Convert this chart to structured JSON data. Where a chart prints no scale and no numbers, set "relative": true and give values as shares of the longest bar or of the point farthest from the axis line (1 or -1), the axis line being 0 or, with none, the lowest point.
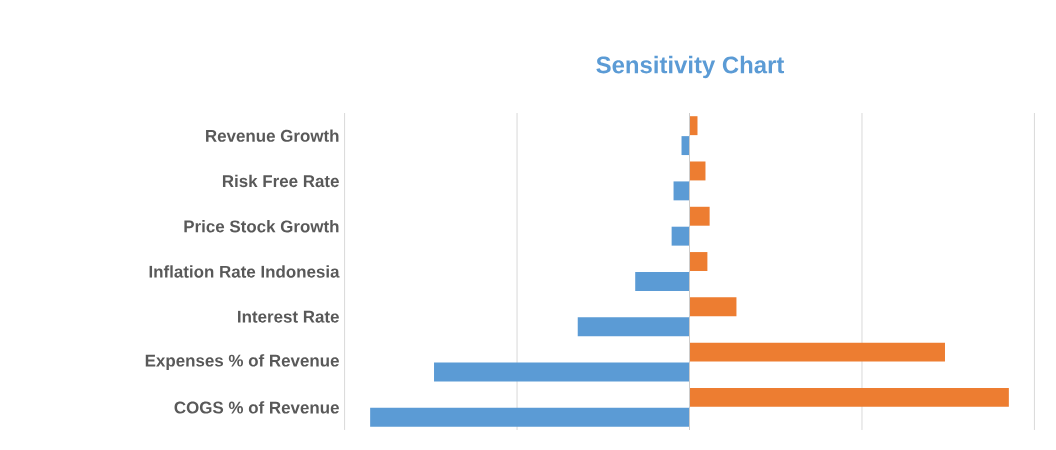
{
  "chart_data": {
    "type": "bar",
    "title": "Sensitivity Chart",
    "orientation": "horizontal",
    "relative": true,
    "grid": "x",
    "categories": [
      "Revenue Growth",
      "Risk Free Rate",
      "Price Stock Growth",
      "Inflation Rate Indonesia",
      "Interest Rate",
      "Expenses % of Revenue",
      "COGS % of Revenue"
    ],
    "series": [
      {
        "color": "#5b9bd5",
        "values": [
          -0.025,
          -0.05,
          -0.056,
          -0.17,
          -0.35,
          -0.8,
          -1.0
        ]
      },
      {
        "color": "#ed7d31",
        "values": [
          0.025,
          0.05,
          0.063,
          0.056,
          0.147,
          0.8,
          1.0
        ]
      }
    ]
  }
}
